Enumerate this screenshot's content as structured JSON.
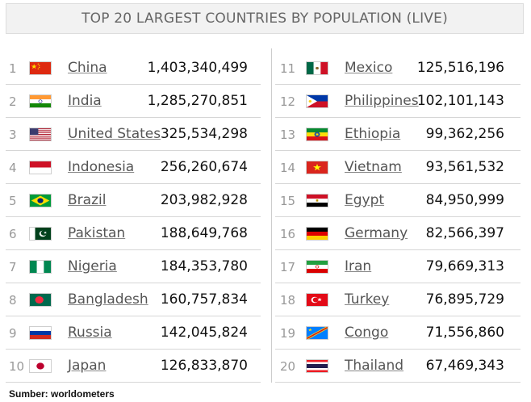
{
  "title": "TOP 20 LARGEST COUNTRIES BY POPULATION (LIVE)",
  "source": "Sumber: worldometers",
  "countries_left": [
    {
      "rank": "1",
      "name": "China",
      "population": "1,403,340,499",
      "flag": "china-flag-icon"
    },
    {
      "rank": "2",
      "name": "India",
      "population": "1,285,270,851",
      "flag": "india-flag-icon"
    },
    {
      "rank": "3",
      "name": "United States",
      "population": "325,534,298",
      "flag": "usa-flag-icon"
    },
    {
      "rank": "4",
      "name": "Indonesia",
      "population": "256,260,674",
      "flag": "indonesia-flag-icon"
    },
    {
      "rank": "5",
      "name": "Brazil",
      "population": "203,982,928",
      "flag": "brazil-flag-icon"
    },
    {
      "rank": "6",
      "name": "Pakistan",
      "population": "188,649,768",
      "flag": "pakistan-flag-icon"
    },
    {
      "rank": "7",
      "name": "Nigeria",
      "population": "184,353,780",
      "flag": "nigeria-flag-icon"
    },
    {
      "rank": "8",
      "name": "Bangladesh",
      "population": "160,757,834",
      "flag": "bangladesh-flag-icon"
    },
    {
      "rank": "9",
      "name": "Russia",
      "population": "142,045,824",
      "flag": "russia-flag-icon"
    },
    {
      "rank": "10",
      "name": "Japan",
      "population": "126,833,870",
      "flag": "japan-flag-icon"
    }
  ],
  "countries_right": [
    {
      "rank": "11",
      "name": "Mexico",
      "population": "125,516,196",
      "flag": "mexico-flag-icon"
    },
    {
      "rank": "12",
      "name": "Philippines",
      "population": "102,101,143",
      "flag": "philippines-flag-icon"
    },
    {
      "rank": "13",
      "name": "Ethiopia",
      "population": "99,362,256",
      "flag": "ethiopia-flag-icon"
    },
    {
      "rank": "14",
      "name": "Vietnam",
      "population": "93,561,532",
      "flag": "vietnam-flag-icon"
    },
    {
      "rank": "15",
      "name": "Egypt",
      "population": "84,950,999",
      "flag": "egypt-flag-icon"
    },
    {
      "rank": "16",
      "name": "Germany",
      "population": "82,566,397",
      "flag": "germany-flag-icon"
    },
    {
      "rank": "17",
      "name": "Iran",
      "population": "79,669,313",
      "flag": "iran-flag-icon"
    },
    {
      "rank": "18",
      "name": "Turkey",
      "population": "76,895,729",
      "flag": "turkey-flag-icon"
    },
    {
      "rank": "19",
      "name": "Congo",
      "population": "71,556,860",
      "flag": "congo-flag-icon"
    },
    {
      "rank": "20",
      "name": "Thailand",
      "population": "67,469,343",
      "flag": "thailand-flag-icon"
    }
  ]
}
